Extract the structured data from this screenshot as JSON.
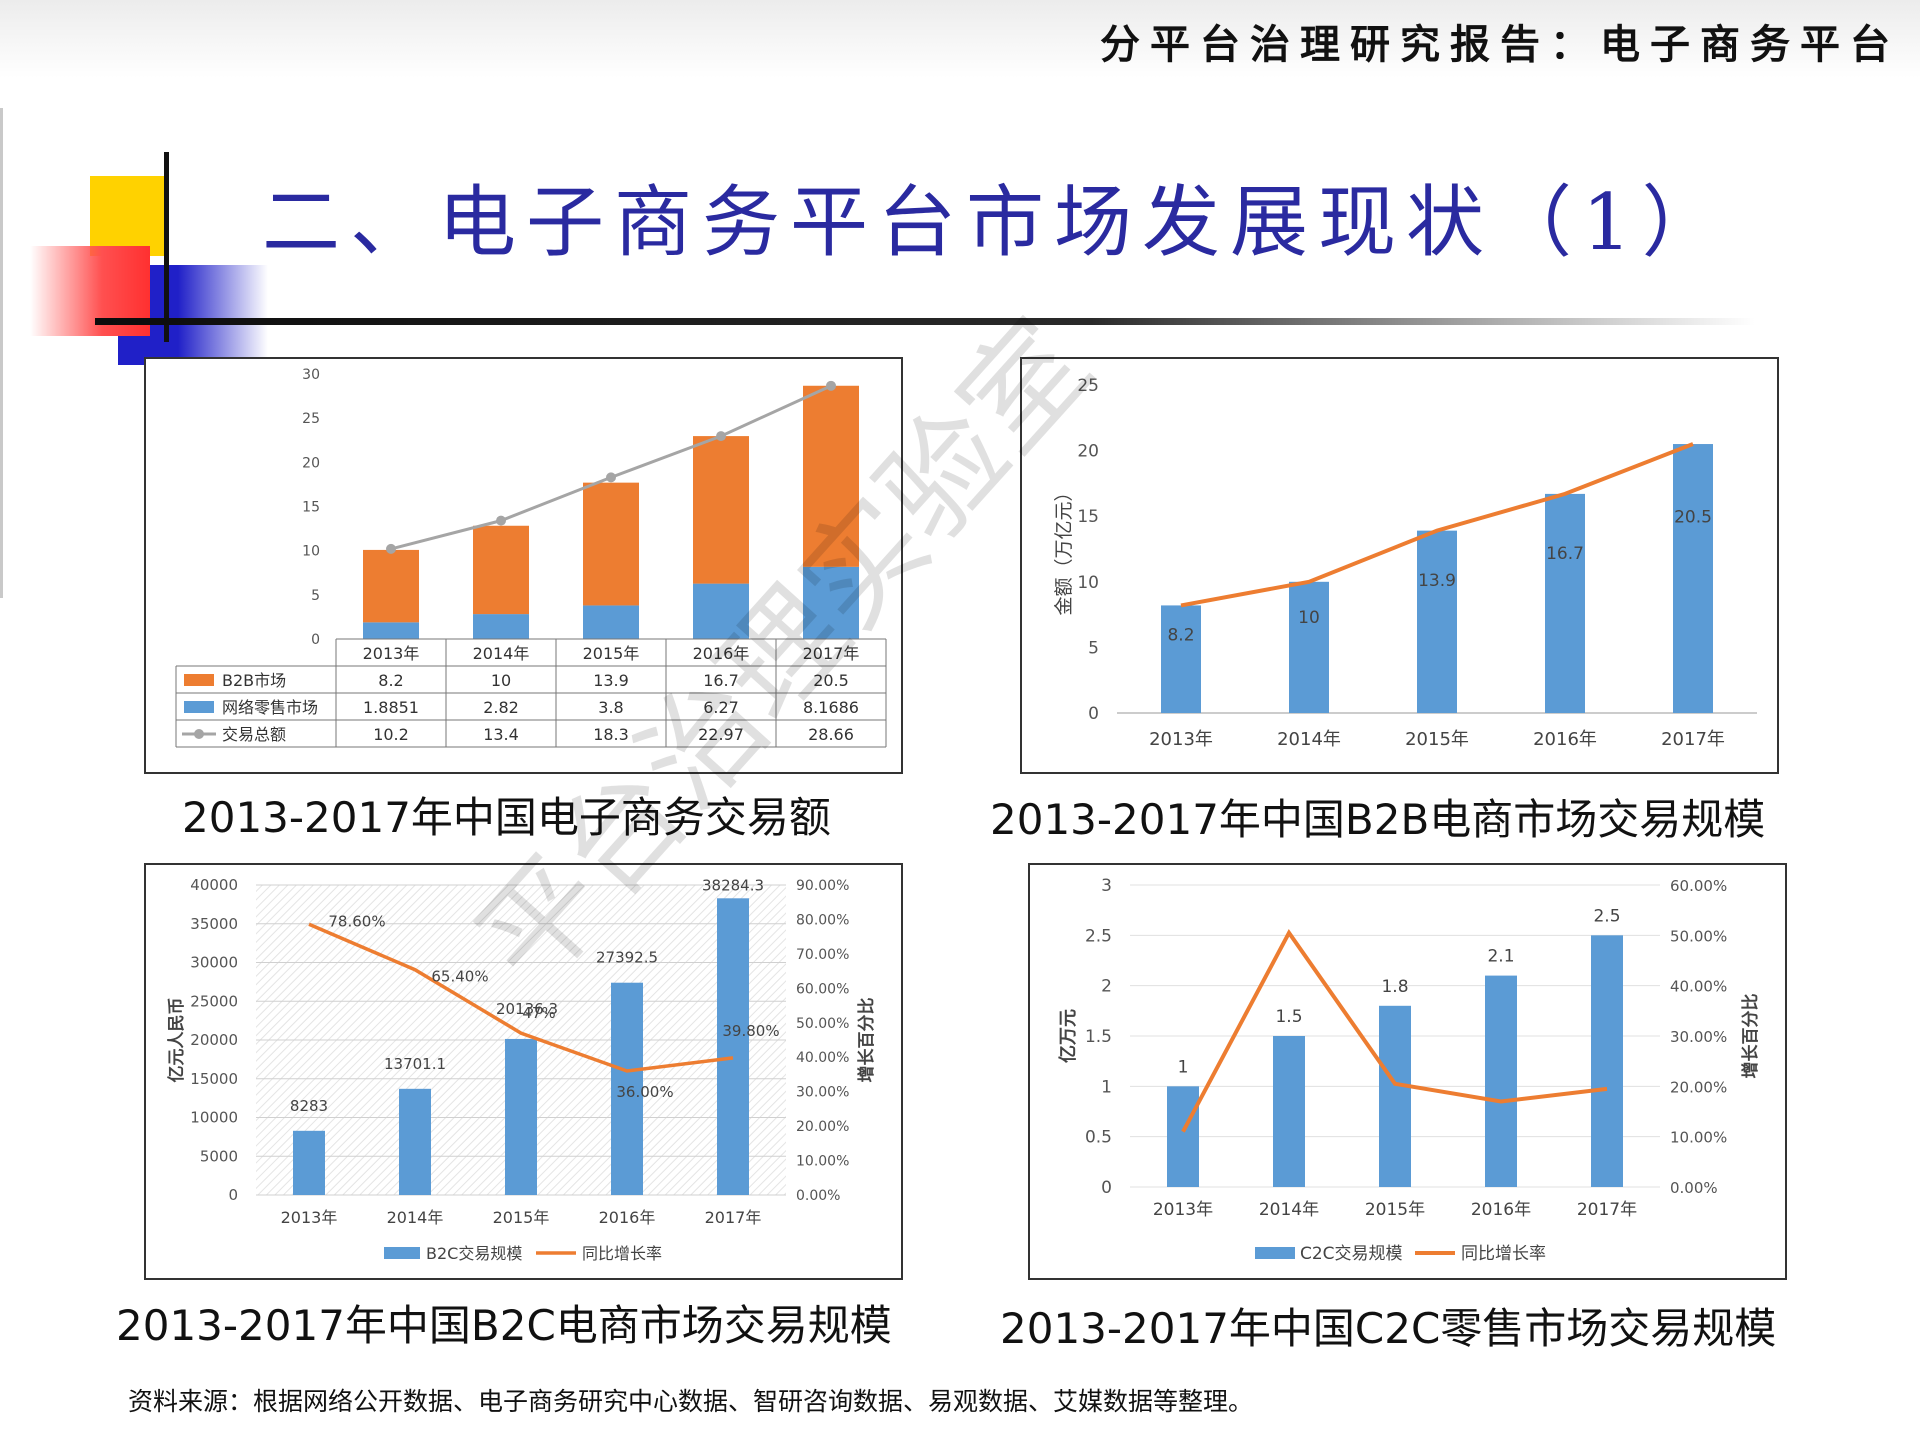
{
  "header": "分平台治理研究报告：电子商务平台",
  "title": "二、电子商务平台市场发展现状（1）",
  "watermark": "平台治理实验室",
  "colors": {
    "title": "#2a2aa0",
    "orange": "#ed7d31",
    "blue": "#5b9bd5",
    "gray": "#a5a5a5",
    "yellow": "#ffd200",
    "red": "#ff3030",
    "navy": "#2020c8"
  },
  "source_text": "资料来源：根据网络公开数据、电子商务研究中心数据、智研咨询数据、易观数据、艾媒数据等整理。",
  "captions": {
    "c1": "2013-2017年中国电子商务交易额",
    "c2": "2013-2017年中国B2B电商市场交易规模",
    "c3": "2013-2017年中国B2C电商市场交易规模",
    "c4": "2013-2017年中国C2C零售市场交易规模"
  },
  "chart_data": [
    {
      "type": "bar",
      "stacked": true,
      "categories": [
        "2013年",
        "2014年",
        "2015年",
        "2016年",
        "2017年"
      ],
      "series": [
        {
          "name": "B2B市场",
          "values": [
            8.2,
            10,
            13.9,
            16.7,
            20.5
          ],
          "labels": [
            "8.2",
            "10",
            "13.9",
            "16.7",
            "20.5"
          ],
          "color": "#ed7d31",
          "kind": "bar"
        },
        {
          "name": "网络零售市场",
          "values": [
            1.8851,
            2.82,
            3.8,
            6.27,
            8.1686
          ],
          "labels": [
            "1.8851",
            "2.82",
            "3.8",
            "6.27",
            "8.1686"
          ],
          "color": "#5b9bd5",
          "kind": "bar"
        },
        {
          "name": "交易总额",
          "values": [
            10.2,
            13.4,
            18.3,
            22.97,
            28.66
          ],
          "labels": [
            "10.2",
            "13.4",
            "18.3",
            "22.97",
            "28.66"
          ],
          "color": "#a5a5a5",
          "kind": "line"
        }
      ],
      "yticks": [
        "0",
        "5",
        "10",
        "15",
        "20",
        "25",
        "30"
      ],
      "ylim": [
        0,
        30
      ],
      "data_table": true
    },
    {
      "type": "bar",
      "categories": [
        "2013年",
        "2014年",
        "2015年",
        "2016年",
        "2017年"
      ],
      "series": [
        {
          "name": "",
          "values": [
            8.2,
            10,
            13.9,
            16.7,
            20.5
          ],
          "labels": [
            "8.2",
            "10",
            "13.9",
            "16.7",
            "20.5"
          ],
          "color": "#5b9bd5",
          "kind": "bar"
        },
        {
          "name": "",
          "values": [
            8.2,
            10,
            13.9,
            16.7,
            20.5
          ],
          "color": "#ed7d31",
          "kind": "line"
        }
      ],
      "ylabel": "金额（万亿元）",
      "yticks": [
        "0",
        "5",
        "10",
        "15",
        "20",
        "25"
      ],
      "ylim": [
        0,
        25
      ]
    },
    {
      "type": "bar",
      "categories": [
        "2013年",
        "2014年",
        "2015年",
        "2016年",
        "2017年"
      ],
      "series": [
        {
          "name": "B2C交易规模",
          "values": [
            8283,
            13701.1,
            20136.3,
            27392.5,
            38284.3
          ],
          "labels": [
            "8283",
            "13701.1",
            "20136.3",
            "27392.5",
            "38284.3"
          ],
          "color": "#5b9bd5",
          "kind": "bar",
          "axis": "left"
        },
        {
          "name": "同比增长率",
          "values": [
            78.6,
            65.4,
            47,
            36.0,
            39.8
          ],
          "labels": [
            "78.60%",
            "65.40%",
            "47%",
            "36.00%",
            "39.80%"
          ],
          "color": "#ed7d31",
          "kind": "line",
          "axis": "right"
        }
      ],
      "ylabel": "亿元人民币",
      "y2label": "增长百分比",
      "yticks": [
        "0",
        "5000",
        "10000",
        "15000",
        "20000",
        "25000",
        "30000",
        "35000",
        "40000"
      ],
      "y2ticks": [
        "0.00%",
        "10.00%",
        "20.00%",
        "30.00%",
        "40.00%",
        "50.00%",
        "60.00%",
        "70.00%",
        "80.00%",
        "90.00%"
      ],
      "ylim": [
        0,
        40000
      ],
      "y2lim": [
        0,
        90
      ],
      "legend_position": "bottom"
    },
    {
      "type": "bar",
      "categories": [
        "2013年",
        "2014年",
        "2015年",
        "2016年",
        "2017年"
      ],
      "series": [
        {
          "name": "C2C交易规模",
          "values": [
            1,
            1.5,
            1.8,
            2.1,
            2.5
          ],
          "labels": [
            "1",
            "1.5",
            "1.8",
            "2.1",
            "2.5"
          ],
          "color": "#5b9bd5",
          "kind": "bar",
          "axis": "left"
        },
        {
          "name": "同比增长率",
          "values": [
            11,
            50.5,
            20.5,
            17,
            19.5
          ],
          "color": "#ed7d31",
          "kind": "line",
          "axis": "right"
        }
      ],
      "ylabel": "亿万元",
      "y2label": "增长百分比",
      "yticks": [
        "0",
        "0.5",
        "1",
        "1.5",
        "2",
        "2.5",
        "3"
      ],
      "y2ticks": [
        "0.00%",
        "10.00%",
        "20.00%",
        "30.00%",
        "40.00%",
        "50.00%",
        "60.00%"
      ],
      "ylim": [
        0,
        3
      ],
      "y2lim": [
        0,
        60
      ],
      "legend_position": "bottom"
    }
  ]
}
